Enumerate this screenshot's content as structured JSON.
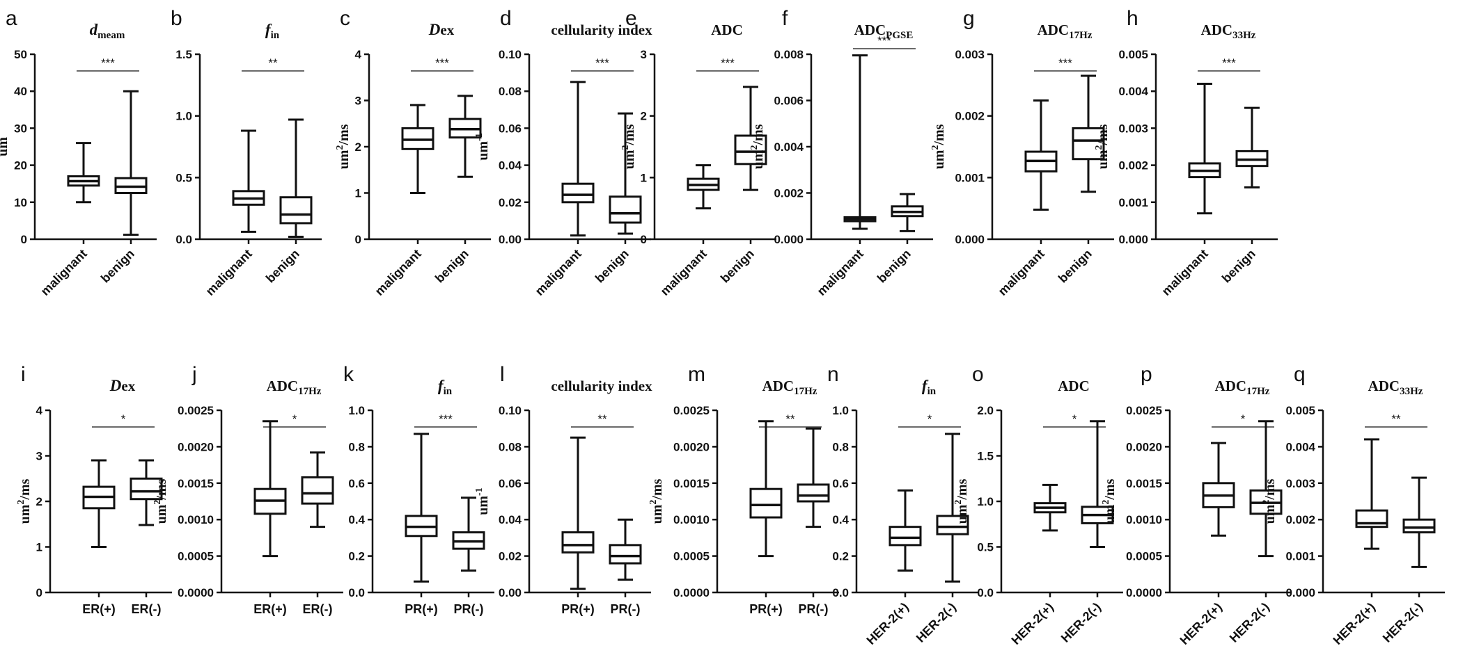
{
  "chart_data": [
    {
      "panel": "a",
      "type": "box",
      "title": "d",
      "title_sub": "meam",
      "title_style": "italic-sub",
      "ylabel": "um",
      "ylim": [
        0,
        50
      ],
      "yticks": [
        "0",
        "10",
        "20",
        "30",
        "40",
        "50"
      ],
      "categories": [
        "malignant",
        "benign"
      ],
      "cat_rotate": true,
      "significance": "***",
      "boxes": [
        {
          "min": 10,
          "q1": 14.5,
          "median": 15.7,
          "q3": 17,
          "max": 26
        },
        {
          "min": 1.2,
          "q1": 12.5,
          "median": 14.2,
          "q3": 16.5,
          "max": 40
        }
      ]
    },
    {
      "panel": "b",
      "type": "box",
      "title": "f",
      "title_sub": "in",
      "title_style": "italic-sub",
      "ylabel": "",
      "ylim": [
        0,
        1.5
      ],
      "yticks": [
        "0.0",
        "0.5",
        "1.0",
        "1.5"
      ],
      "categories": [
        "malignant",
        "benign"
      ],
      "cat_rotate": true,
      "significance": "**",
      "boxes": [
        {
          "min": 0.06,
          "q1": 0.28,
          "median": 0.33,
          "q3": 0.39,
          "max": 0.88
        },
        {
          "min": 0.02,
          "q1": 0.13,
          "median": 0.2,
          "q3": 0.34,
          "max": 0.97
        }
      ]
    },
    {
      "panel": "c",
      "type": "box",
      "title": "D",
      "title_sub": "ex",
      "title_style": "italic-inline",
      "ylabel": "um2/ms",
      "ylabel_base": "um",
      "ylabel_sup": "2",
      "ylabel_rest": "/ms",
      "ylim": [
        0,
        4
      ],
      "yticks": [
        "0",
        "1",
        "2",
        "3",
        "4"
      ],
      "categories": [
        "malignant",
        "benign"
      ],
      "cat_rotate": true,
      "significance": "***",
      "boxes": [
        {
          "min": 1.0,
          "q1": 1.95,
          "median": 2.15,
          "q3": 2.4,
          "max": 2.9
        },
        {
          "min": 1.35,
          "q1": 2.2,
          "median": 2.38,
          "q3": 2.6,
          "max": 3.1
        }
      ]
    },
    {
      "panel": "d",
      "type": "box",
      "title": "cellularity index",
      "title_style": "plain",
      "ylabel": "um-1",
      "ylabel_base": "um",
      "ylabel_sup": "-1",
      "ylabel_rest": "",
      "ylim": [
        0,
        0.1
      ],
      "yticks": [
        "0.00",
        "0.02",
        "0.04",
        "0.06",
        "0.08",
        "0.10"
      ],
      "categories": [
        "malignant",
        "benign"
      ],
      "cat_rotate": true,
      "significance": "***",
      "boxes": [
        {
          "min": 0.002,
          "q1": 0.02,
          "median": 0.024,
          "q3": 0.03,
          "max": 0.085
        },
        {
          "min": 0.003,
          "q1": 0.009,
          "median": 0.014,
          "q3": 0.023,
          "max": 0.068
        }
      ]
    },
    {
      "panel": "e",
      "type": "box",
      "title": "ADC",
      "title_style": "plain",
      "ylabel": "um2/ms",
      "ylabel_base": "um",
      "ylabel_sup": "2",
      "ylabel_rest": "/ms",
      "ylim": [
        0,
        3
      ],
      "yticks": [
        "0",
        "1",
        "2",
        "3"
      ],
      "categories": [
        "malignant",
        "benign"
      ],
      "cat_rotate": true,
      "significance": "***",
      "boxes": [
        {
          "min": 0.5,
          "q1": 0.8,
          "median": 0.88,
          "q3": 0.98,
          "max": 1.2
        },
        {
          "min": 0.8,
          "q1": 1.22,
          "median": 1.42,
          "q3": 1.68,
          "max": 2.47
        }
      ]
    },
    {
      "panel": "f",
      "type": "box",
      "title": "ADC",
      "title_sub": "PGSE",
      "title_style": "sub",
      "ylabel": "um2/ms",
      "ylabel_base": "um",
      "ylabel_sup": "2",
      "ylabel_rest": "/ms",
      "ylim": [
        0,
        0.008
      ],
      "yticks": [
        "0.000",
        "0.002",
        "0.004",
        "0.006",
        "0.008"
      ],
      "categories": [
        "malignant",
        "benign"
      ],
      "cat_rotate": true,
      "significance": "***",
      "sig_high": true,
      "boxes": [
        {
          "min": 0.00045,
          "q1": 0.00078,
          "median": 0.00088,
          "q3": 0.00095,
          "max": 0.00795
        },
        {
          "min": 0.00035,
          "q1": 0.001,
          "median": 0.00118,
          "q3": 0.00142,
          "max": 0.00195
        }
      ]
    },
    {
      "panel": "g",
      "type": "box",
      "title": "ADC",
      "title_sub": "17Hz",
      "title_style": "sub",
      "ylabel": "um2/ms",
      "ylabel_base": "um",
      "ylabel_sup": "2",
      "ylabel_rest": "/ms",
      "ylim": [
        0,
        0.003
      ],
      "yticks": [
        "0.000",
        "0.001",
        "0.002",
        "0.003"
      ],
      "categories": [
        "malignant",
        "benign"
      ],
      "cat_rotate": true,
      "significance": "***",
      "boxes": [
        {
          "min": 0.00048,
          "q1": 0.0011,
          "median": 0.00127,
          "q3": 0.00142,
          "max": 0.00225
        },
        {
          "min": 0.00077,
          "q1": 0.0013,
          "median": 0.0016,
          "q3": 0.0018,
          "max": 0.00265
        }
      ]
    },
    {
      "panel": "h",
      "type": "box",
      "title": "ADC",
      "title_sub": "33Hz",
      "title_style": "sub",
      "ylabel": "um2/ms",
      "ylabel_base": "um",
      "ylabel_sup": "2",
      "ylabel_rest": "/ms",
      "ylim": [
        0,
        0.005
      ],
      "yticks": [
        "0.000",
        "0.001",
        "0.002",
        "0.003",
        "0.004",
        "0.005"
      ],
      "categories": [
        "malignant",
        "benign"
      ],
      "cat_rotate": true,
      "significance": "***",
      "boxes": [
        {
          "min": 0.0007,
          "q1": 0.00168,
          "median": 0.00185,
          "q3": 0.00205,
          "max": 0.0042
        },
        {
          "min": 0.0014,
          "q1": 0.00198,
          "median": 0.00215,
          "q3": 0.00238,
          "max": 0.00355
        }
      ]
    },
    {
      "panel": "i",
      "type": "box",
      "title": "D",
      "title_sub": "ex",
      "title_style": "italic-inline",
      "ylabel": "um2/ms",
      "ylabel_base": "um",
      "ylabel_sup": "2",
      "ylabel_rest": "/ms",
      "ylim": [
        0,
        4
      ],
      "yticks": [
        "0",
        "1",
        "2",
        "3",
        "4"
      ],
      "categories": [
        "ER(+)",
        "ER(-)"
      ],
      "cat_rotate": false,
      "significance": "*",
      "boxes": [
        {
          "min": 1.0,
          "q1": 1.85,
          "median": 2.1,
          "q3": 2.32,
          "max": 2.9
        },
        {
          "min": 1.48,
          "q1": 2.05,
          "median": 2.22,
          "q3": 2.5,
          "max": 2.9
        }
      ]
    },
    {
      "panel": "j",
      "type": "box",
      "title": "ADC",
      "title_sub": "17Hz",
      "title_style": "sub",
      "ylabel": "um2/ms",
      "ylabel_base": "um",
      "ylabel_sup": "2",
      "ylabel_rest": "/ms",
      "ylim": [
        0,
        0.0025
      ],
      "yticks": [
        "0.0000",
        "0.0005",
        "0.0010",
        "0.0015",
        "0.0020",
        "0.0025"
      ],
      "categories": [
        "ER(+)",
        "ER(-)"
      ],
      "cat_rotate": false,
      "significance": "*",
      "boxes": [
        {
          "min": 0.0005,
          "q1": 0.00108,
          "median": 0.00126,
          "q3": 0.00142,
          "max": 0.00235
        },
        {
          "min": 0.0009,
          "q1": 0.00122,
          "median": 0.00136,
          "q3": 0.00158,
          "max": 0.00192
        }
      ]
    },
    {
      "panel": "k",
      "type": "box",
      "title": "f",
      "title_sub": "in",
      "title_style": "italic-sub",
      "ylabel": "",
      "ylim": [
        0,
        1.0
      ],
      "yticks": [
        "0.0",
        "0.2",
        "0.4",
        "0.6",
        "0.8",
        "1.0"
      ],
      "categories": [
        "PR(+)",
        "PR(-)"
      ],
      "cat_rotate": false,
      "significance": "***",
      "boxes": [
        {
          "min": 0.06,
          "q1": 0.31,
          "median": 0.36,
          "q3": 0.42,
          "max": 0.87
        },
        {
          "min": 0.12,
          "q1": 0.24,
          "median": 0.28,
          "q3": 0.33,
          "max": 0.52
        }
      ]
    },
    {
      "panel": "l",
      "type": "box",
      "title": "cellularity  index",
      "title_style": "plain",
      "ylabel": "um-1",
      "ylabel_base": "um",
      "ylabel_sup": "-1",
      "ylabel_rest": "",
      "ylim": [
        0,
        0.1
      ],
      "yticks": [
        "0.00",
        "0.02",
        "0.04",
        "0.06",
        "0.08",
        "0.10"
      ],
      "categories": [
        "PR(+)",
        "PR(-)"
      ],
      "cat_rotate": false,
      "significance": "**",
      "boxes": [
        {
          "min": 0.002,
          "q1": 0.022,
          "median": 0.026,
          "q3": 0.033,
          "max": 0.085
        },
        {
          "min": 0.007,
          "q1": 0.016,
          "median": 0.02,
          "q3": 0.026,
          "max": 0.04
        }
      ]
    },
    {
      "panel": "m",
      "type": "box",
      "title": "ADC",
      "title_sub": "17Hz",
      "title_style": "sub",
      "ylabel": "um2/ms",
      "ylabel_base": "um",
      "ylabel_sup": "2",
      "ylabel_rest": "/ms",
      "ylim": [
        0,
        0.0025
      ],
      "yticks": [
        "0.0000",
        "0.0005",
        "0.0010",
        "0.0015",
        "0.0020",
        "0.0025"
      ],
      "categories": [
        "PR(+)",
        "PR(-)"
      ],
      "cat_rotate": false,
      "significance": "**",
      "boxes": [
        {
          "min": 0.0005,
          "q1": 0.00103,
          "median": 0.0012,
          "q3": 0.00142,
          "max": 0.00235
        },
        {
          "min": 0.0009,
          "q1": 0.00125,
          "median": 0.00133,
          "q3": 0.00148,
          "max": 0.00225
        }
      ]
    },
    {
      "panel": "n",
      "type": "box",
      "title": "f",
      "title_sub": "in",
      "title_style": "italic-sub",
      "ylabel": "",
      "ylim": [
        0,
        1.0
      ],
      "yticks": [
        "0.0",
        "0.2",
        "0.4",
        "0.6",
        "0.8",
        "1.0"
      ],
      "categories": [
        "HER-2(+)",
        "HER-2(-)"
      ],
      "cat_rotate": true,
      "significance": "*",
      "sig_bold": true,
      "boxes": [
        {
          "min": 0.12,
          "q1": 0.26,
          "median": 0.3,
          "q3": 0.36,
          "max": 0.56
        },
        {
          "min": 0.06,
          "q1": 0.32,
          "median": 0.36,
          "q3": 0.42,
          "max": 0.87
        }
      ]
    },
    {
      "panel": "o",
      "type": "box",
      "title": "ADC",
      "title_style": "plain",
      "ylabel": "um2/ms",
      "ylabel_base": "um",
      "ylabel_sup": "2",
      "ylabel_rest": "/ms",
      "ylim": [
        0,
        2.0
      ],
      "yticks": [
        "0.0",
        "0.5",
        "1.0",
        "1.5",
        "2.0"
      ],
      "categories": [
        "HER-2(+)",
        "HER-2(-)"
      ],
      "cat_rotate": true,
      "significance": "*",
      "sig_bold": true,
      "boxes": [
        {
          "min": 0.68,
          "q1": 0.88,
          "median": 0.93,
          "q3": 0.98,
          "max": 1.18
        },
        {
          "min": 0.5,
          "q1": 0.76,
          "median": 0.85,
          "q3": 0.94,
          "max": 1.88
        }
      ]
    },
    {
      "panel": "p",
      "type": "box",
      "title": "ADC",
      "title_sub": "17Hz",
      "title_style": "sub",
      "ylabel": "um2/ms",
      "ylabel_base": "um",
      "ylabel_sup": "2",
      "ylabel_rest": "/ms",
      "ylim": [
        0,
        0.0025
      ],
      "yticks": [
        "0.0000",
        "0.0005",
        "0.0010",
        "0.0015",
        "0.0020",
        "0.0025"
      ],
      "categories": [
        "HER-2(+)",
        "HER-2(-)"
      ],
      "cat_rotate": true,
      "significance": "*",
      "sig_bold": true,
      "boxes": [
        {
          "min": 0.00078,
          "q1": 0.00117,
          "median": 0.00133,
          "q3": 0.0015,
          "max": 0.00205
        },
        {
          "min": 0.0005,
          "q1": 0.00108,
          "median": 0.00123,
          "q3": 0.0014,
          "max": 0.00235
        }
      ]
    },
    {
      "panel": "q",
      "type": "box",
      "title": "ADC",
      "title_sub": "33Hz",
      "title_style": "sub",
      "ylabel": "um2/ms",
      "ylabel_base": "um",
      "ylabel_sup": "2",
      "ylabel_rest": "/ms",
      "ylim": [
        0,
        0.005
      ],
      "yticks": [
        "0.000",
        "0.001",
        "0.002",
        "0.003",
        "0.004",
        "0.005"
      ],
      "categories": [
        "HER-2(+)",
        "HER-2(-)"
      ],
      "cat_rotate": true,
      "significance": "**",
      "sig_bold": true,
      "boxes": [
        {
          "min": 0.0012,
          "q1": 0.0018,
          "median": 0.0019,
          "q3": 0.00225,
          "max": 0.0042
        },
        {
          "min": 0.0007,
          "q1": 0.00165,
          "median": 0.00178,
          "q3": 0.002,
          "max": 0.00315
        }
      ]
    }
  ]
}
